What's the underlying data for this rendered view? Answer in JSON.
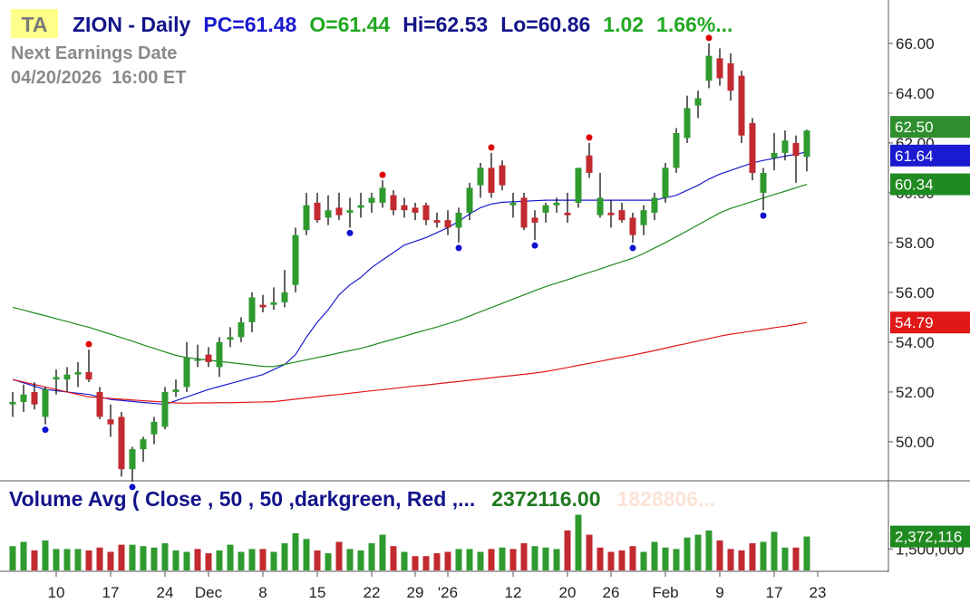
{
  "chart_data": {
    "type": "candlestick",
    "badge": "TA",
    "title": "ZION - Daily",
    "header": {
      "pc": "PC=61.48",
      "open": "O=61.44",
      "high": "Hi=62.53",
      "low": "Lo=60.86",
      "change": "1.02",
      "change_pct": "1.66%..."
    },
    "earnings_label": "Next Earnings Date",
    "earnings_date": "04/20/2026  16:00 ET",
    "categories": [
      null,
      null,
      null,
      null,
      "10",
      null,
      null,
      null,
      null,
      "17",
      null,
      null,
      null,
      null,
      "24",
      null,
      null,
      null,
      "Dec",
      null,
      null,
      null,
      null,
      "8",
      null,
      null,
      null,
      null,
      "15",
      null,
      null,
      null,
      null,
      "22",
      null,
      null,
      null,
      "29",
      null,
      null,
      "'26",
      null,
      null,
      null,
      null,
      null,
      "12",
      null,
      null,
      null,
      null,
      "20",
      null,
      null,
      null,
      "26",
      null,
      null,
      null,
      null,
      "Feb",
      null,
      null,
      null,
      null,
      "9",
      null,
      null,
      null,
      null,
      "17",
      null,
      null,
      null,
      "23"
    ],
    "open": [
      51.5,
      51.6,
      52.0,
      51.0,
      52.5,
      52.5,
      52.7,
      52.8,
      52.0,
      50.9,
      51.0,
      48.9,
      49.7,
      50.3,
      50.6,
      52.0,
      52.2,
      53.3,
      53.5,
      53.0,
      54.1,
      54.2,
      54.8,
      55.5,
      55.5,
      55.6,
      56.3,
      58.5,
      59.6,
      59.0,
      59.4,
      59.2,
      59.4,
      59.6,
      59.6,
      59.9,
      59.5,
      59.4,
      59.5,
      58.9,
      58.9,
      58.6,
      59.2,
      60.3,
      61.0,
      61.1,
      59.5,
      59.8,
      59.0,
      59.2,
      59.5,
      59.2,
      59.6,
      61.5,
      59.1,
      59.2,
      59.3,
      59.0,
      58.7,
      59.2,
      59.8,
      61.0,
      62.2,
      63.5,
      64.5,
      65.4,
      65.2,
      64.7,
      62.8,
      60.0,
      61.4,
      61.6,
      62.0,
      61.44,
      null
    ],
    "high": [
      52.0,
      52.3,
      52.4,
      52.2,
      52.9,
      53.0,
      53.2,
      53.7,
      52.2,
      51.5,
      51.2,
      49.8,
      50.2,
      51.0,
      52.2,
      52.5,
      54.0,
      53.9,
      53.8,
      54.2,
      54.6,
      55.0,
      56.0,
      55.9,
      56.2,
      56.9,
      58.6,
      60.0,
      60.0,
      59.9,
      60.0,
      59.8,
      60.0,
      60.0,
      60.5,
      60.1,
      59.8,
      59.6,
      59.6,
      59.2,
      59.3,
      59.4,
      60.4,
      61.2,
      61.6,
      61.3,
      60.0,
      60.0,
      59.3,
      59.6,
      59.8,
      60.0,
      61.0,
      62.0,
      60.8,
      59.7,
      59.6,
      59.2,
      59.5,
      60.0,
      61.2,
      62.6,
      63.9,
      64.1,
      66.0,
      65.8,
      65.6,
      64.9,
      63.0,
      61.0,
      62.4,
      62.5,
      62.3,
      62.53,
      null
    ],
    "low": [
      51.0,
      51.2,
      51.3,
      50.7,
      51.9,
      52.0,
      52.2,
      52.4,
      50.9,
      50.2,
      48.6,
      48.4,
      49.2,
      49.9,
      50.5,
      51.8,
      52.0,
      53.0,
      53.0,
      52.6,
      53.8,
      54.0,
      54.4,
      55.2,
      55.3,
      55.4,
      56.0,
      58.3,
      58.8,
      58.7,
      58.9,
      58.6,
      59.0,
      59.2,
      59.4,
      59.1,
      59.0,
      58.9,
      58.7,
      58.6,
      58.3,
      58.0,
      58.9,
      59.8,
      59.8,
      60.1,
      59.0,
      58.5,
      58.1,
      58.8,
      59.2,
      58.8,
      59.4,
      60.6,
      59.0,
      58.6,
      58.8,
      58.0,
      58.3,
      58.9,
      59.6,
      60.8,
      62.0,
      63.0,
      64.2,
      64.3,
      63.7,
      62.0,
      60.5,
      59.3,
      60.9,
      61.3,
      60.4,
      60.86,
      null
    ],
    "close": [
      51.6,
      51.9,
      51.5,
      52.1,
      52.6,
      52.7,
      52.8,
      52.5,
      51.0,
      50.7,
      48.9,
      49.7,
      50.1,
      50.8,
      52.0,
      52.1,
      53.4,
      53.3,
      53.2,
      54.0,
      54.2,
      54.8,
      55.8,
      55.4,
      55.6,
      56.0,
      58.3,
      59.5,
      58.9,
      59.3,
      59.1,
      59.3,
      59.5,
      59.8,
      60.2,
      59.3,
      59.3,
      59.2,
      58.9,
      58.8,
      58.6,
      59.2,
      60.2,
      61.0,
      60.0,
      60.3,
      59.6,
      58.6,
      58.8,
      59.5,
      59.6,
      59.1,
      61.0,
      60.8,
      59.8,
      59.1,
      58.9,
      58.3,
      59.3,
      59.8,
      61.0,
      62.4,
      63.4,
      63.8,
      65.5,
      64.6,
      64.1,
      62.3,
      60.8,
      60.8,
      61.6,
      62.1,
      61.48,
      62.5,
      null
    ],
    "last_label": "62.50",
    "up_color": "#2f9b2f",
    "down_color": "#c22a2f",
    "pivot_highs": [
      7,
      34,
      44,
      53,
      64
    ],
    "pivot_lows": [
      3,
      11,
      31,
      41,
      48,
      57,
      69
    ],
    "series": [
      {
        "color": "#1a1ad0",
        "last_label": "61.64",
        "values": [
          52.5,
          52.37,
          52.23,
          52.1,
          52.05,
          52.0,
          51.95,
          51.9,
          51.8,
          51.7,
          51.66,
          51.62,
          51.58,
          51.54,
          51.5,
          51.65,
          51.8,
          51.95,
          52.1,
          52.22,
          52.34,
          52.46,
          52.58,
          52.7,
          52.9,
          53.1,
          53.5,
          54.2,
          54.8,
          55.3,
          55.9,
          56.3,
          56.6,
          57.0,
          57.3,
          57.6,
          57.9,
          58.05,
          58.2,
          58.4,
          58.6,
          58.85,
          59.15,
          59.4,
          59.55,
          59.62,
          59.64,
          59.66,
          59.68,
          59.7,
          59.7,
          59.7,
          59.7,
          59.7,
          59.7,
          59.7,
          59.7,
          59.7,
          59.7,
          59.7,
          59.8,
          59.9,
          60.1,
          60.3,
          60.55,
          60.75,
          60.9,
          61.05,
          61.2,
          61.3,
          61.38,
          61.47,
          61.55,
          61.64,
          null
        ]
      },
      {
        "color": "#1f8a1f",
        "last_label": "60.34",
        "values": [
          55.4,
          55.29,
          55.17,
          55.06,
          54.94,
          54.83,
          54.71,
          54.6,
          54.46,
          54.32,
          54.18,
          54.04,
          53.89,
          53.75,
          53.61,
          53.47,
          53.38,
          53.33,
          53.28,
          53.23,
          53.18,
          53.13,
          53.08,
          53.03,
          53.02,
          53.11,
          53.2,
          53.29,
          53.38,
          53.47,
          53.57,
          53.66,
          53.75,
          53.87,
          54.0,
          54.12,
          54.24,
          54.37,
          54.49,
          54.61,
          54.74,
          54.88,
          55.05,
          55.22,
          55.39,
          55.56,
          55.73,
          55.9,
          56.07,
          56.23,
          56.37,
          56.51,
          56.66,
          56.8,
          56.94,
          57.09,
          57.23,
          57.37,
          57.56,
          57.78,
          58.0,
          58.23,
          58.47,
          58.71,
          58.95,
          59.19,
          59.37,
          59.51,
          59.65,
          59.79,
          59.93,
          60.06,
          60.2,
          60.34,
          null
        ]
      },
      {
        "color": "#e01818",
        "last_label": "54.79",
        "values": [
          52.5,
          52.4,
          52.3,
          52.2,
          52.1,
          52.0,
          51.9,
          51.8,
          51.77,
          51.74,
          51.71,
          51.68,
          51.65,
          51.62,
          51.59,
          51.56,
          51.55,
          51.56,
          51.56,
          51.57,
          51.57,
          51.58,
          51.59,
          51.6,
          51.61,
          51.66,
          51.71,
          51.76,
          51.81,
          51.86,
          51.9,
          51.95,
          52.0,
          52.05,
          52.09,
          52.14,
          52.19,
          52.24,
          52.28,
          52.33,
          52.38,
          52.42,
          52.47,
          52.52,
          52.57,
          52.62,
          52.66,
          52.71,
          52.76,
          52.82,
          52.9,
          52.98,
          53.07,
          53.15,
          53.23,
          53.32,
          53.4,
          53.48,
          53.57,
          53.66,
          53.76,
          53.86,
          53.95,
          54.05,
          54.14,
          54.24,
          54.32,
          54.38,
          54.45,
          54.51,
          54.58,
          54.64,
          54.71,
          54.79,
          null
        ]
      }
    ],
    "ylim": [
      48.47,
      67.56
    ],
    "yticks": [
      {
        "value": 50,
        "label": "50.00"
      },
      {
        "value": 52,
        "label": "52.00"
      },
      {
        "value": 54,
        "label": "54.00"
      },
      {
        "value": 56,
        "label": "56.00"
      },
      {
        "value": 58,
        "label": "58.00"
      },
      {
        "value": 60,
        "label": "60.00"
      },
      {
        "value": 62,
        "label": "62.00"
      },
      {
        "value": 64,
        "label": "64.00"
      },
      {
        "value": 66,
        "label": "66.00"
      }
    ],
    "volume": {
      "title": "Volume Avg ( Close , 50 , 50 ,darkgreen, Red ,...",
      "value_text": "2372116.00",
      "faded_text": "1828806...",
      "values": [
        1700000,
        2000000,
        1400000,
        2100000,
        1500000,
        1500000,
        1500000,
        1400000,
        1600000,
        1300000,
        1800000,
        1800000,
        1700000,
        1600000,
        1900000,
        1400000,
        1300000,
        1500000,
        1200000,
        1400000,
        1800000,
        1300000,
        1500000,
        1500000,
        1300000,
        1900000,
        2600000,
        2200000,
        1400000,
        1200000,
        2000000,
        1500000,
        1400000,
        1900000,
        2500000,
        1700000,
        1300000,
        1000000,
        1000000,
        1200000,
        1300000,
        1500000,
        1500000,
        1300000,
        1500000,
        1600000,
        1500000,
        1900000,
        1700000,
        1600000,
        1500000,
        2800000,
        3900000,
        2500000,
        1600000,
        1300000,
        1400000,
        1700000,
        1300000,
        2000000,
        1600000,
        1500000,
        2300000,
        2500000,
        2800000,
        2100000,
        1500000,
        1400000,
        1900000,
        2000000,
        2700000,
        1600000,
        1600000,
        2372116,
        null
      ],
      "last_label": "2,372,116",
      "color": "#1f8a1f",
      "ylim": [
        0,
        6150000
      ],
      "yticks": [
        {
          "value": 1500000,
          "label": "1,500,000"
        }
      ]
    }
  }
}
